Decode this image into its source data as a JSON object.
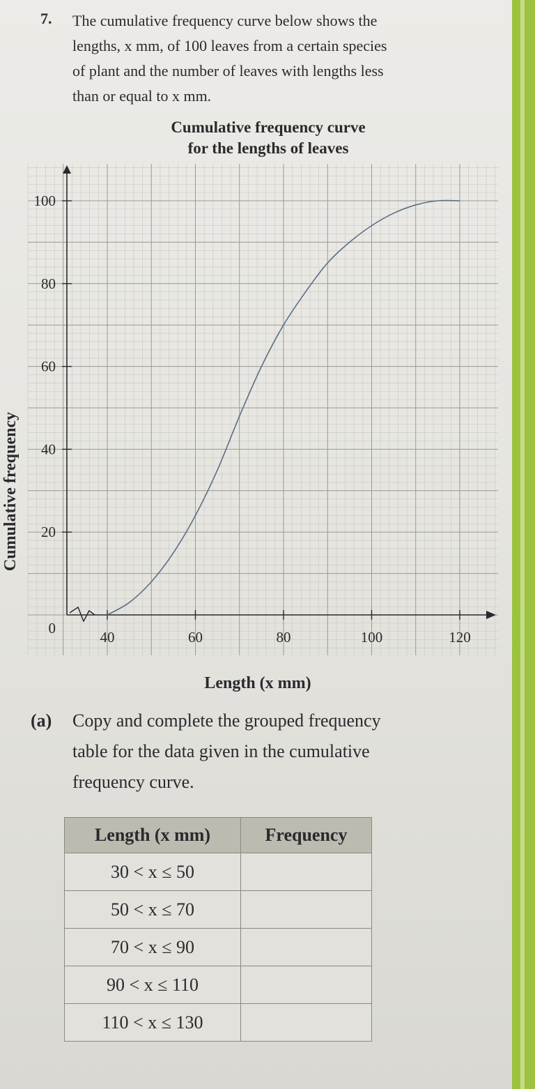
{
  "question": {
    "number": "7.",
    "lines": [
      "The cumulative frequency curve below shows the",
      "lengths, x mm, of 100 leaves from a certain species",
      "of plant and the number of leaves with lengths less",
      "than or equal to x mm."
    ]
  },
  "chart_data": {
    "type": "line",
    "title_lines": [
      "Cumulative frequency curve",
      "for the lengths of leaves"
    ],
    "xlabel": "Length (x mm)",
    "ylabel": "Cumulative frequency",
    "x_ticks": [
      "40",
      "60",
      "80",
      "100",
      "120"
    ],
    "y_ticks": [
      "0",
      "20",
      "40",
      "60",
      "80",
      "100"
    ],
    "xlim": [
      20,
      125
    ],
    "ylim": [
      0,
      105
    ],
    "grid": true,
    "series": [
      {
        "x": [
          40,
          45,
          50,
          55,
          60,
          65,
          70,
          75,
          80,
          85,
          90,
          95,
          100,
          105,
          110,
          115,
          120
        ],
        "values": [
          0,
          3,
          8,
          15,
          24,
          35,
          48,
          60,
          70,
          78,
          85,
          90,
          94,
          97,
          99,
          100,
          100
        ]
      }
    ]
  },
  "part_a": {
    "label": "(a)",
    "lines": [
      "Copy and complete the grouped frequency",
      "table for the data given in the cumulative",
      "frequency curve."
    ]
  },
  "table": {
    "headers": [
      "Length (x mm)",
      "Frequency"
    ],
    "rows": [
      [
        "30 < x ≤ 50",
        ""
      ],
      [
        "50 < x ≤ 70",
        ""
      ],
      [
        "70 < x ≤ 90",
        ""
      ],
      [
        "90 < x ≤ 110",
        ""
      ],
      [
        "110 < x ≤ 130",
        ""
      ]
    ]
  },
  "colors": {
    "curve": "#5a6f86",
    "grid_major": "#9a9994",
    "grid_minor": "#c9c8c3",
    "accent_edge": "#9cc33f"
  }
}
